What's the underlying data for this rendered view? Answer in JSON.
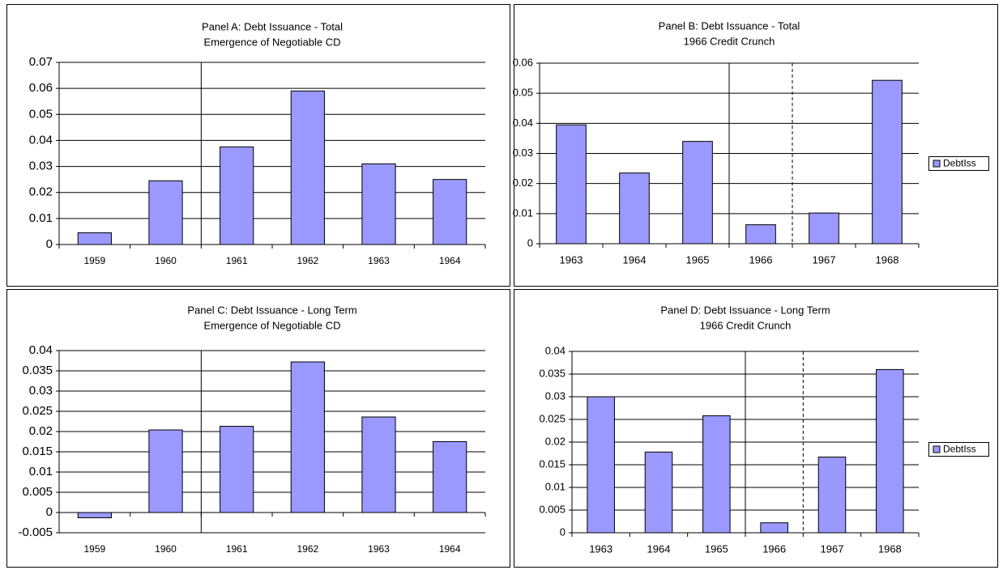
{
  "chart_data": [
    {
      "type": "bar",
      "title": "Panel A: Debt Issuance - Total",
      "subtitle": "Emergence of Negotiable CD",
      "categories": [
        "1959",
        "1960",
        "1961",
        "1962",
        "1963",
        "1964"
      ],
      "values": [
        0.0045,
        0.0245,
        0.0375,
        0.059,
        0.031,
        0.025
      ],
      "color": "#9999ff",
      "ylim": [
        0,
        0.07
      ],
      "yticks": [
        0,
        0.01,
        0.02,
        0.03,
        0.04,
        0.05,
        0.06,
        0.07
      ],
      "grid": true
    },
    {
      "type": "bar",
      "title": "Panel B: Debt Issuance -  Total",
      "subtitle": "1966 Credit Crunch",
      "categories": [
        "1963",
        "1964",
        "1965",
        "1966",
        "1967",
        "1968"
      ],
      "series": [
        {
          "name": "DebtIss",
          "color": "#9999ff",
          "values": [
            0.0395,
            0.0235,
            0.034,
            0.0063,
            0.0102,
            0.0543
          ]
        }
      ],
      "ylim": [
        0,
        0.06
      ],
      "yticks": [
        0,
        0.01,
        0.02,
        0.03,
        0.04,
        0.05,
        0.06
      ],
      "grid": true,
      "legend": "right"
    },
    {
      "type": "bar",
      "title": "Panel C: Debt Issuance - Long Term",
      "subtitle": "Emergence of Negotiable CD",
      "categories": [
        "1959",
        "1960",
        "1961",
        "1962",
        "1963",
        "1964"
      ],
      "values": [
        -0.0013,
        0.0204,
        0.0213,
        0.0372,
        0.0236,
        0.0175
      ],
      "color": "#9999ff",
      "ylim": [
        -0.005,
        0.04
      ],
      "yticks": [
        -0.005,
        0,
        0.005,
        0.01,
        0.015,
        0.02,
        0.025,
        0.03,
        0.035,
        0.04
      ],
      "grid": true
    },
    {
      "type": "bar",
      "title": "Panel D: Debt Issuance - Long Term",
      "subtitle": "1966 Credit Crunch",
      "categories": [
        "1963",
        "1964",
        "1965",
        "1966",
        "1967",
        "1968"
      ],
      "series": [
        {
          "name": "DebtIss",
          "color": "#9999ff",
          "values": [
            0.03,
            0.0178,
            0.0258,
            0.0022,
            0.0167,
            0.036
          ]
        }
      ],
      "ylim": [
        0,
        0.04
      ],
      "yticks": [
        0,
        0.005,
        0.01,
        0.015,
        0.02,
        0.025,
        0.03,
        0.035,
        0.04
      ],
      "grid": true,
      "legend": "right"
    }
  ]
}
